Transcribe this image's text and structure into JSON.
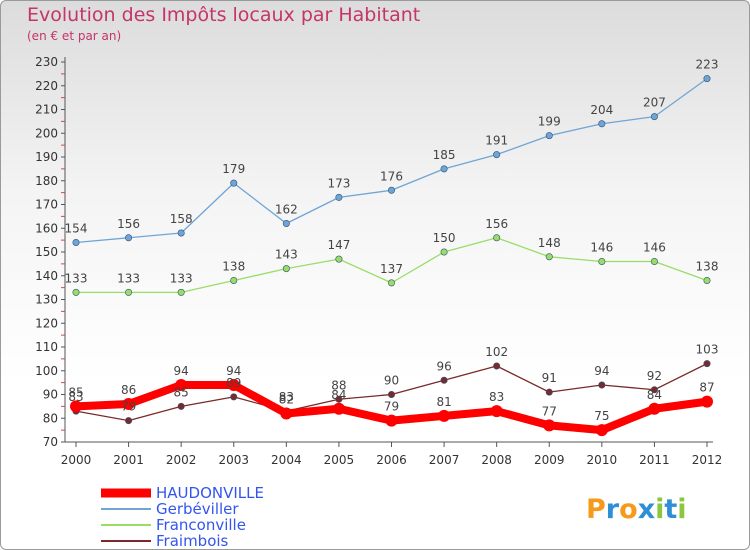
{
  "chart_data": {
    "type": "line",
    "title": "Evolution des Impôts locaux par Habitant",
    "subtitle": "(en € et par an)",
    "xlabel": "",
    "ylabel": "",
    "ylim": [
      70,
      230
    ],
    "yticks": [
      70,
      80,
      90,
      100,
      110,
      120,
      130,
      140,
      150,
      160,
      170,
      180,
      190,
      200,
      210,
      220,
      230
    ],
    "grid": false,
    "legend_position": "bottom-left",
    "categories": [
      "2000",
      "2001",
      "2002",
      "2003",
      "2004",
      "2005",
      "2006",
      "2007",
      "2008",
      "2009",
      "2010",
      "2011",
      "2012"
    ],
    "series": [
      {
        "name": "HAUDONVILLE",
        "color": "#ff0000",
        "values": [
          85,
          86,
          94,
          94,
          82,
          84,
          79,
          81,
          83,
          77,
          75,
          84,
          87
        ]
      },
      {
        "name": "Gerbéviller",
        "color": "#6fa5d6",
        "values": [
          154,
          156,
          158,
          179,
          162,
          173,
          176,
          185,
          191,
          199,
          204,
          207,
          223
        ]
      },
      {
        "name": "Franconville",
        "color": "#99dd66",
        "values": [
          133,
          133,
          133,
          138,
          143,
          147,
          137,
          150,
          156,
          148,
          146,
          146,
          138
        ]
      },
      {
        "name": "Fraimbois",
        "color": "#7a2a2a",
        "values": [
          83,
          79,
          85,
          89,
          83,
          88,
          90,
          96,
          102,
          91,
          94,
          92,
          103
        ]
      }
    ]
  },
  "legend_colors": {
    "HAUDONVILLE": "#3355ee",
    "Gerbéviller": "#3355ee",
    "Franconville": "#3355ee",
    "Fraimbois": "#3355ee"
  },
  "logo": {
    "text": "Proxiti"
  }
}
